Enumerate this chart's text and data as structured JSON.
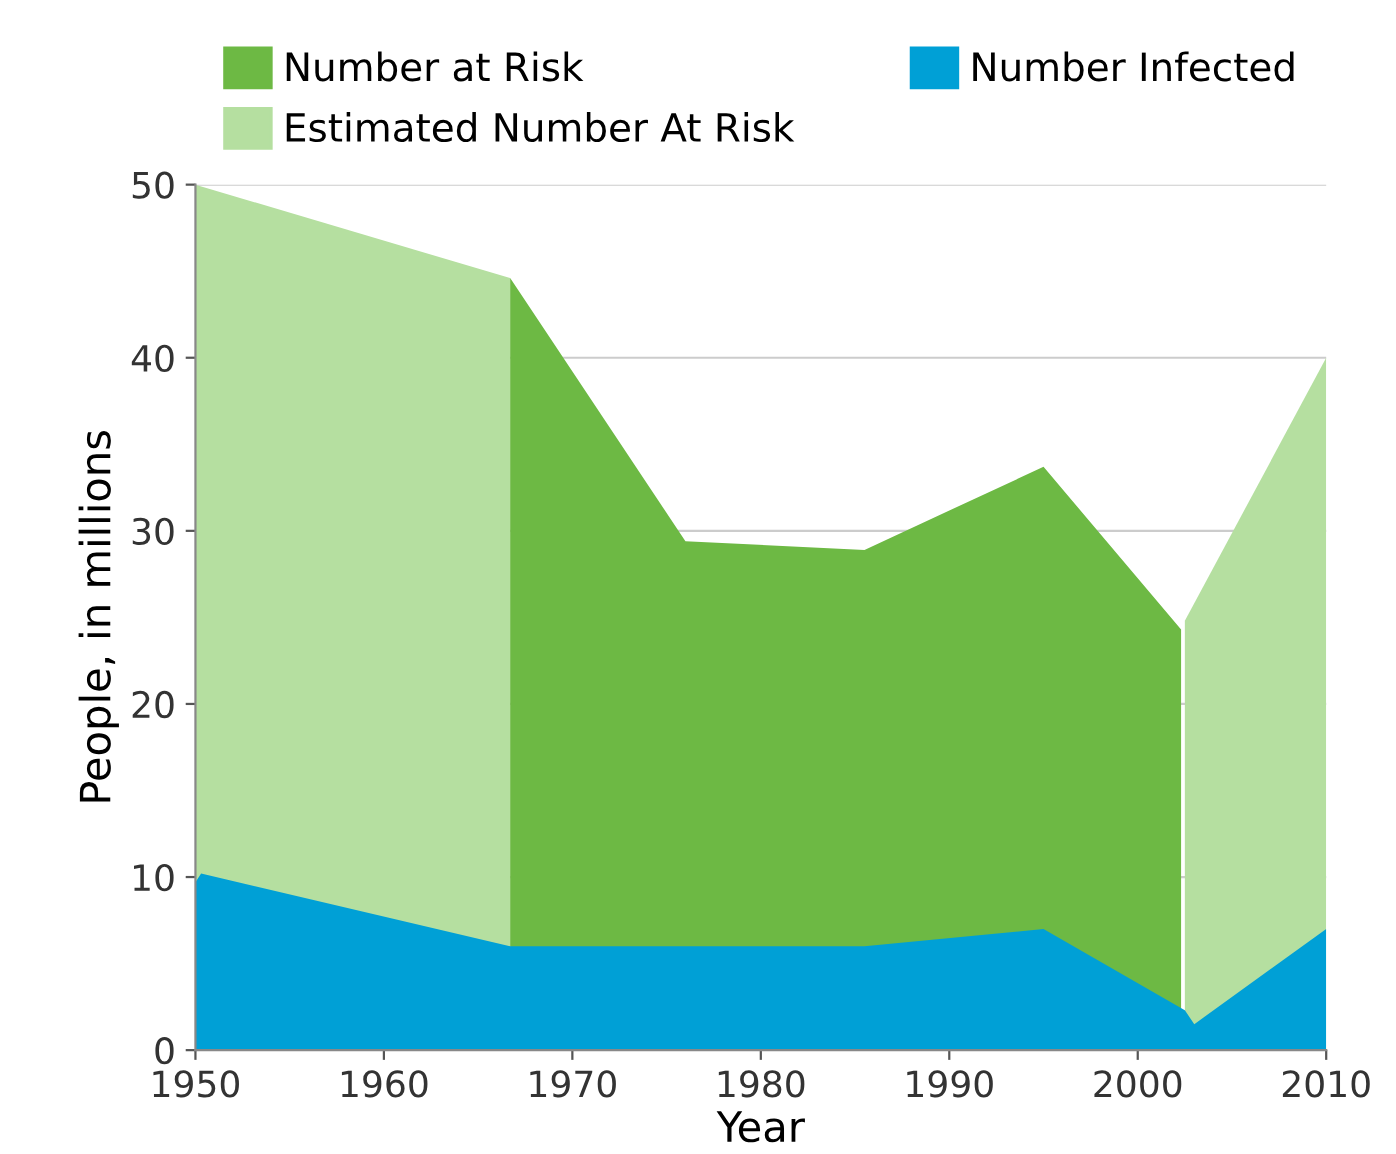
{
  "chart_data": {
    "type": "area",
    "xlabel": "Year",
    "ylabel": "People, in millions",
    "xlim": [
      1950,
      2010
    ],
    "xticks": [
      1950,
      1960,
      1970,
      1980,
      1990,
      2000,
      2010
    ],
    "ylim": [
      0,
      50
    ],
    "yticks": [
      0,
      10,
      20,
      30,
      40,
      50
    ],
    "grid": "y",
    "legend": "top",
    "series": [
      {
        "name": "Estimated Number At Risk",
        "color": "#b5dfa0",
        "x": [
          1950,
          1966.7,
          1985,
          2002.5,
          2010
        ],
        "values": [
          50,
          44.6,
          null,
          24.8,
          40
        ]
      },
      {
        "name": "Number at Risk",
        "color": "#6db944",
        "x": [
          1966.7,
          1976,
          1985.5,
          1995,
          2002.3
        ],
        "values": [
          44.6,
          29.4,
          28.9,
          33.7,
          24.3
        ]
      },
      {
        "name": "Number Infected",
        "color": "#00a0d6",
        "x": [
          1950,
          1950.3,
          1966.7,
          1976,
          1985.5,
          1995,
          2002.5,
          2003,
          2010
        ],
        "values": [
          9.7,
          10.2,
          6,
          6,
          6,
          7,
          2.3,
          1.5,
          7
        ]
      }
    ]
  }
}
